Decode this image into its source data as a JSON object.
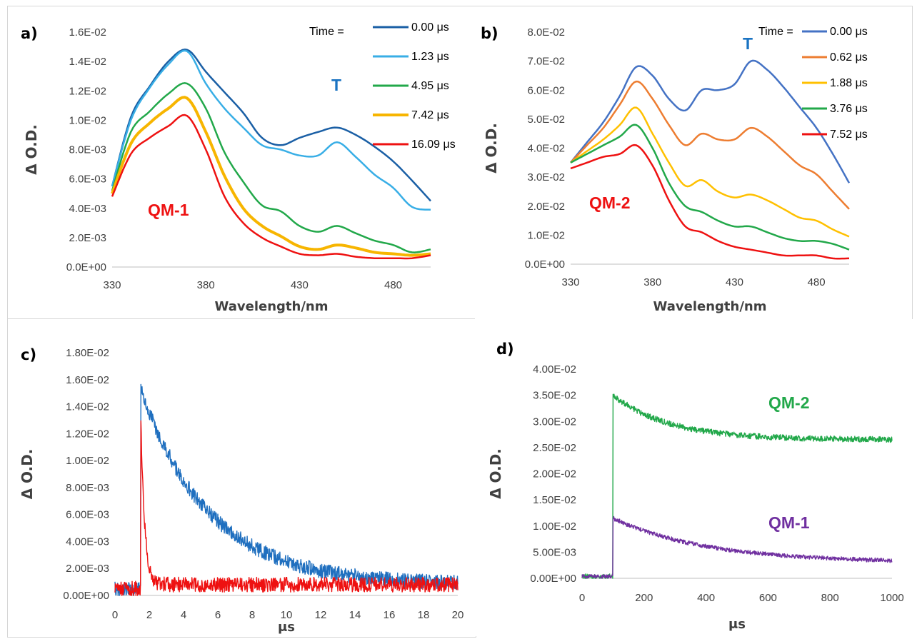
{
  "chart_data": [
    {
      "panel_label": "a)",
      "type": "line",
      "xlabel": "Wavelength/nm",
      "ylabel": "Δ O.D.",
      "x_ticks": [
        "330",
        "380",
        "430",
        "480"
      ],
      "y_ticks": [
        "0.0E+00",
        "2.0E-03",
        "4.0E-03",
        "6.0E-03",
        "8.0E-03",
        "1.0E-02",
        "1.2E-02",
        "1.4E-02",
        "1.6E-02"
      ],
      "xlim": [
        330,
        500
      ],
      "ylim": [
        0,
        0.016
      ],
      "legend_title": "Time =",
      "legend_position": "top-right",
      "annotations": [
        {
          "text": "T",
          "color": "#1a73c2"
        },
        {
          "text": "QM-1",
          "color": "#ee1111"
        }
      ],
      "x": [
        330,
        340,
        350,
        360,
        370,
        380,
        390,
        400,
        410,
        420,
        430,
        440,
        450,
        460,
        470,
        480,
        490,
        500
      ],
      "series": [
        {
          "name": "0.00 μs",
          "color": "#1a5fa5",
          "values": [
            0.0055,
            0.0102,
            0.0123,
            0.014,
            0.0148,
            0.0133,
            0.0119,
            0.0105,
            0.0088,
            0.0083,
            0.0088,
            0.0092,
            0.0095,
            0.009,
            0.0082,
            0.0072,
            0.0059,
            0.0045
          ]
        },
        {
          "name": "1.23 μs",
          "color": "#38aee6",
          "values": [
            0.0055,
            0.01,
            0.0122,
            0.0138,
            0.0147,
            0.0125,
            0.0108,
            0.0095,
            0.0083,
            0.008,
            0.0076,
            0.0076,
            0.0085,
            0.0075,
            0.0063,
            0.0054,
            0.0041,
            0.0039
          ]
        },
        {
          "name": "4.95 μs",
          "color": "#22a84a",
          "values": [
            0.0052,
            0.0092,
            0.0106,
            0.0118,
            0.0125,
            0.0108,
            0.0078,
            0.0058,
            0.0042,
            0.0038,
            0.0028,
            0.0024,
            0.0028,
            0.0023,
            0.0018,
            0.0015,
            0.001,
            0.0012
          ]
        },
        {
          "name": "7.42 μs",
          "color": "#f7b500",
          "values": [
            0.005,
            0.0084,
            0.0098,
            0.0108,
            0.0115,
            0.0092,
            0.0062,
            0.004,
            0.0028,
            0.0021,
            0.0014,
            0.0012,
            0.0015,
            0.0013,
            0.001,
            0.0009,
            0.0008,
            0.0009
          ]
        },
        {
          "name": "16.09 μs",
          "color": "#ee1111",
          "values": [
            0.0048,
            0.0077,
            0.0088,
            0.0096,
            0.0103,
            0.008,
            0.0048,
            0.003,
            0.002,
            0.0014,
            0.0009,
            0.0008,
            0.0009,
            0.0007,
            0.0006,
            0.0006,
            0.0006,
            0.0008
          ]
        }
      ]
    },
    {
      "panel_label": "b)",
      "type": "line",
      "xlabel": "Wavelength/nm",
      "ylabel": "Δ O.D.",
      "x_ticks": [
        "330",
        "380",
        "430",
        "480"
      ],
      "y_ticks": [
        "0.0E+00",
        "1.0E-02",
        "2.0E-02",
        "3.0E-02",
        "4.0E-02",
        "5.0E-02",
        "6.0E-02",
        "7.0E-02",
        "8.0E-02"
      ],
      "xlim": [
        330,
        500
      ],
      "ylim": [
        0,
        0.08
      ],
      "legend_title": "Time =",
      "legend_position": "top-right",
      "annotations": [
        {
          "text": "T",
          "color": "#1a73c2"
        },
        {
          "text": "QM-2",
          "color": "#ee1111"
        }
      ],
      "x": [
        330,
        340,
        350,
        360,
        370,
        380,
        390,
        400,
        410,
        420,
        430,
        440,
        450,
        460,
        470,
        480,
        490,
        500
      ],
      "series": [
        {
          "name": "0.00 μs",
          "color": "#4472c4",
          "values": [
            0.035,
            0.042,
            0.049,
            0.058,
            0.068,
            0.065,
            0.057,
            0.053,
            0.06,
            0.06,
            0.062,
            0.07,
            0.067,
            0.061,
            0.054,
            0.047,
            0.038,
            0.028
          ]
        },
        {
          "name": "0.62 μs",
          "color": "#ed7d31",
          "values": [
            0.035,
            0.041,
            0.047,
            0.055,
            0.063,
            0.057,
            0.048,
            0.041,
            0.045,
            0.043,
            0.043,
            0.047,
            0.044,
            0.039,
            0.034,
            0.031,
            0.025,
            0.019
          ]
        },
        {
          "name": "1.88 μs",
          "color": "#ffc000",
          "values": [
            0.035,
            0.039,
            0.043,
            0.048,
            0.054,
            0.045,
            0.035,
            0.027,
            0.029,
            0.025,
            0.023,
            0.024,
            0.022,
            0.019,
            0.016,
            0.015,
            0.012,
            0.0095
          ]
        },
        {
          "name": "3.76 μs",
          "color": "#22a84a",
          "values": [
            0.035,
            0.038,
            0.041,
            0.044,
            0.048,
            0.04,
            0.028,
            0.02,
            0.018,
            0.015,
            0.013,
            0.013,
            0.011,
            0.009,
            0.008,
            0.008,
            0.007,
            0.005
          ]
        },
        {
          "name": "7.52 μs",
          "color": "#ee1111",
          "values": [
            0.033,
            0.035,
            0.037,
            0.038,
            0.041,
            0.034,
            0.022,
            0.013,
            0.011,
            0.008,
            0.006,
            0.005,
            0.004,
            0.003,
            0.003,
            0.003,
            0.002,
            0.002
          ]
        }
      ]
    },
    {
      "panel_label": "c)",
      "type": "line",
      "xlabel": "μs",
      "ylabel": "Δ O.D.",
      "x_ticks": [
        "0",
        "2",
        "4",
        "6",
        "8",
        "10",
        "12",
        "14",
        "16",
        "18",
        "20"
      ],
      "y_ticks": [
        "0.00E+00",
        "2.00E-03",
        "4.00E-03",
        "6.00E-03",
        "8.00E-03",
        "1.00E-02",
        "1.20E-02",
        "1.40E-02",
        "1.60E-02",
        "1.80E-02"
      ],
      "xlim": [
        0,
        20
      ],
      "ylim": [
        0,
        0.018
      ],
      "series": [
        {
          "color": "#1f6fbf",
          "kinetics": {
            "t0": 1.5,
            "baseline": 0.0005,
            "amplitude": 0.0145,
            "decay": [
              {
                "fraction": 1.0,
                "tau": 4.0
              }
            ],
            "offset": 0.0008
          }
        },
        {
          "color": "#ee1111",
          "kinetics": {
            "t0": 1.5,
            "baseline": 0.0005,
            "amplitude": 0.0128,
            "decay": [
              {
                "fraction": 1.0,
                "tau": 0.22
              }
            ],
            "offset": 0.0008
          }
        }
      ]
    },
    {
      "panel_label": "d)",
      "type": "line",
      "xlabel": "μs",
      "ylabel": "Δ O.D.",
      "x_ticks": [
        "0",
        "200",
        "400",
        "600",
        "800",
        "1000"
      ],
      "y_ticks": [
        "0.00E+00",
        "5.00E-03",
        "1.00E-02",
        "1.50E-02",
        "2.00E-02",
        "2.50E-02",
        "3.00E-02",
        "3.50E-02",
        "4.00E-02"
      ],
      "xlim": [
        0,
        1000
      ],
      "ylim": [
        0,
        0.04
      ],
      "annotations": [
        {
          "text": "QM-2",
          "color": "#22a84a"
        },
        {
          "text": "QM-1",
          "color": "#7030a0"
        }
      ],
      "series": [
        {
          "name": "QM-2",
          "color": "#22a84a",
          "kinetics": {
            "t0": 100,
            "baseline": 0.0003,
            "amplitude": 0.0085,
            "decay": [
              {
                "fraction": 1.0,
                "tau": 180
              }
            ],
            "offset": 0.0265
          }
        },
        {
          "name": "QM-1",
          "color": "#7030a0",
          "kinetics": {
            "t0": 100,
            "baseline": 0.0003,
            "amplitude": 0.0085,
            "decay": [
              {
                "fraction": 1.0,
                "tau": 300
              }
            ],
            "offset": 0.003
          }
        }
      ]
    }
  ]
}
